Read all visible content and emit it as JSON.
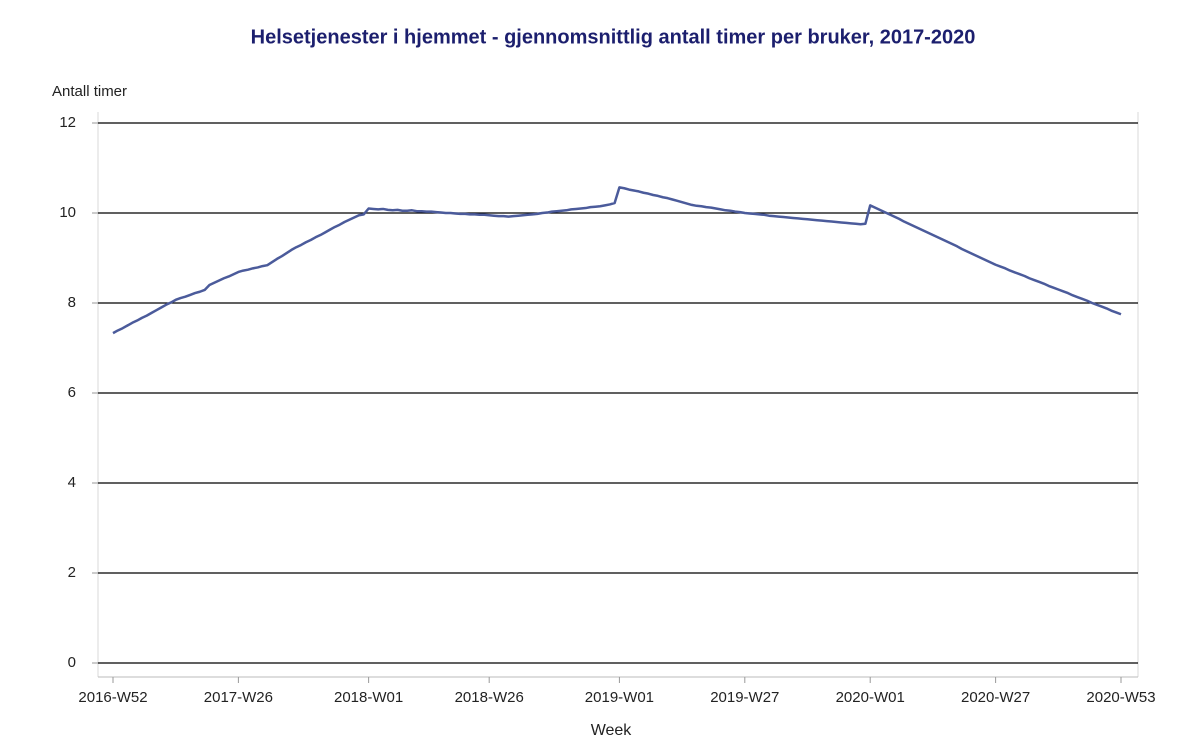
{
  "chart_data": {
    "type": "line",
    "title": "Helsetjenester i hjemmet - gjennomsnittlig antall timer per bruker, 2017-2020",
    "ylabel": "Antall timer",
    "xlabel": "Week",
    "color": "#4b5b9b",
    "grid": true,
    "ylim": [
      0,
      12
    ],
    "yticks": [
      0,
      2,
      4,
      6,
      8,
      10,
      12
    ],
    "categories": [
      "2016-W52",
      null,
      null,
      null,
      null,
      null,
      null,
      null,
      null,
      null,
      null,
      null,
      null,
      null,
      null,
      null,
      null,
      null,
      null,
      null,
      null,
      null,
      null,
      null,
      null,
      null,
      "2017-W26",
      null,
      null,
      null,
      null,
      null,
      null,
      null,
      null,
      null,
      null,
      null,
      null,
      null,
      null,
      null,
      null,
      null,
      null,
      null,
      null,
      null,
      null,
      null,
      null,
      null,
      null,
      "2018-W01",
      null,
      null,
      null,
      null,
      null,
      null,
      null,
      null,
      null,
      null,
      null,
      null,
      null,
      null,
      null,
      null,
      null,
      null,
      null,
      null,
      null,
      null,
      null,
      null,
      "2018-W26",
      null,
      null,
      null,
      null,
      null,
      null,
      null,
      null,
      null,
      null,
      null,
      null,
      null,
      null,
      null,
      null,
      null,
      null,
      null,
      null,
      null,
      null,
      null,
      null,
      null,
      null,
      "2019-W01",
      null,
      null,
      null,
      null,
      null,
      null,
      null,
      null,
      null,
      null,
      null,
      null,
      null,
      null,
      null,
      null,
      null,
      null,
      null,
      null,
      null,
      null,
      null,
      null,
      null,
      "2019-W27",
      null,
      null,
      null,
      null,
      null,
      null,
      null,
      null,
      null,
      null,
      null,
      null,
      null,
      null,
      null,
      null,
      null,
      null,
      null,
      null,
      null,
      null,
      null,
      null,
      null,
      "2020-W01",
      null,
      null,
      null,
      null,
      null,
      null,
      null,
      null,
      null,
      null,
      null,
      null,
      null,
      null,
      null,
      null,
      null,
      null,
      null,
      null,
      null,
      null,
      null,
      null,
      null,
      "2020-W27",
      null,
      null,
      null,
      null,
      null,
      null,
      null,
      null,
      null,
      null,
      null,
      null,
      null,
      null,
      null,
      null,
      null,
      null,
      null,
      null,
      null,
      null,
      null,
      null,
      null,
      "2020-W53"
    ],
    "values": [
      7.33,
      7.39,
      7.44,
      7.5,
      7.56,
      7.61,
      7.67,
      7.72,
      7.78,
      7.84,
      7.9,
      7.96,
      8.01,
      8.07,
      8.11,
      8.14,
      8.18,
      8.22,
      8.25,
      8.29,
      8.4,
      8.45,
      8.5,
      8.55,
      8.59,
      8.64,
      8.69,
      8.72,
      8.74,
      8.77,
      8.79,
      8.82,
      8.84,
      8.91,
      8.98,
      9.04,
      9.11,
      9.18,
      9.24,
      9.29,
      9.35,
      9.4,
      9.46,
      9.51,
      9.57,
      9.63,
      9.69,
      9.74,
      9.8,
      9.85,
      9.9,
      9.95,
      9.97,
      10.1,
      10.09,
      10.08,
      10.09,
      10.07,
      10.06,
      10.07,
      10.05,
      10.05,
      10.06,
      10.04,
      10.04,
      10.03,
      10.03,
      10.02,
      10.01,
      10.0,
      10.0,
      9.99,
      9.98,
      9.98,
      9.97,
      9.97,
      9.96,
      9.96,
      9.95,
      9.94,
      9.93,
      9.93,
      9.92,
      9.93,
      9.94,
      9.95,
      9.96,
      9.97,
      9.98,
      10.0,
      10.01,
      10.03,
      10.04,
      10.05,
      10.06,
      10.08,
      10.09,
      10.1,
      10.11,
      10.13,
      10.14,
      10.15,
      10.17,
      10.19,
      10.22,
      10.57,
      10.55,
      10.52,
      10.5,
      10.48,
      10.45,
      10.43,
      10.4,
      10.38,
      10.35,
      10.33,
      10.3,
      10.27,
      10.24,
      10.21,
      10.18,
      10.16,
      10.15,
      10.13,
      10.12,
      10.1,
      10.08,
      10.06,
      10.05,
      10.03,
      10.02,
      10.0,
      9.99,
      9.98,
      9.97,
      9.96,
      9.94,
      9.93,
      9.92,
      9.91,
      9.9,
      9.89,
      9.88,
      9.87,
      9.86,
      9.85,
      9.84,
      9.83,
      9.82,
      9.81,
      9.8,
      9.79,
      9.78,
      9.77,
      9.76,
      9.75,
      9.76,
      10.17,
      10.12,
      10.07,
      10.02,
      9.97,
      9.92,
      9.87,
      9.81,
      9.76,
      9.71,
      9.66,
      9.61,
      9.56,
      9.51,
      9.46,
      9.41,
      9.36,
      9.31,
      9.26,
      9.2,
      9.15,
      9.1,
      9.05,
      9.0,
      8.95,
      8.9,
      8.85,
      8.81,
      8.77,
      8.72,
      8.68,
      8.64,
      8.6,
      8.55,
      8.51,
      8.47,
      8.43,
      8.38,
      8.34,
      8.3,
      8.26,
      8.22,
      8.17,
      8.13,
      8.09,
      8.05,
      8.0,
      7.96,
      7.92,
      7.88,
      7.83,
      7.79,
      7.75
    ]
  }
}
